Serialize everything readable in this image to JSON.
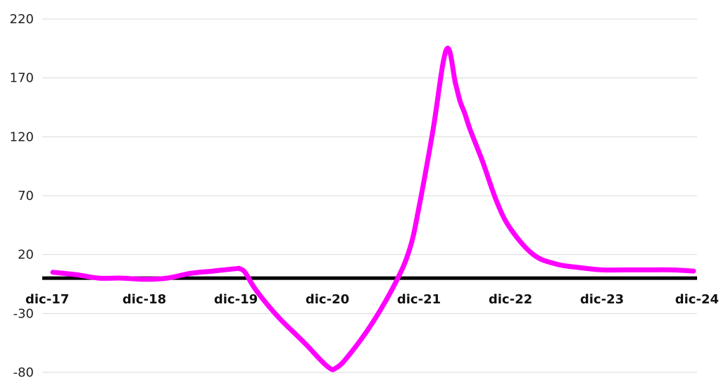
{
  "chart_data": {
    "type": "line",
    "title": "",
    "xlabel": "",
    "ylabel": "",
    "ylim": [
      -80,
      220
    ],
    "yticks": [
      220,
      170,
      120,
      70,
      20,
      -30,
      -80
    ],
    "grid": true,
    "legend": "none",
    "x_tick_labels": [
      "dic-17",
      "dic-18",
      "dic-19",
      "dic-20",
      "dic-21",
      "dic-22",
      "dic-23",
      "dic-24"
    ],
    "zero_line": {
      "value": 0,
      "color": "#000000"
    },
    "series": [
      {
        "color": "#ff00ff",
        "x": [
          0,
          0.25,
          0.5,
          0.75,
          1.0,
          1.25,
          1.5,
          1.75,
          2.0,
          2.04,
          2.1,
          2.2,
          2.35,
          2.5,
          2.75,
          3.0,
          3.1,
          3.25,
          3.5,
          3.75,
          3.9,
          4.0,
          4.15,
          4.3,
          4.4,
          4.45,
          4.5,
          4.55,
          4.6,
          4.7,
          4.85,
          5.0,
          5.25,
          5.5,
          5.75,
          6.0,
          6.25,
          6.5,
          6.75,
          7.0
        ],
        "y": [
          5,
          3,
          0,
          0,
          -1,
          0,
          4,
          6,
          8,
          8,
          5,
          -8,
          -23,
          -36,
          -55,
          -75,
          -76,
          -64,
          -37,
          -3,
          25,
          60,
          124,
          194,
          165,
          150,
          140,
          128,
          118,
          98,
          65,
          42,
          20,
          12,
          9,
          7,
          7,
          7,
          7,
          6
        ]
      }
    ]
  }
}
